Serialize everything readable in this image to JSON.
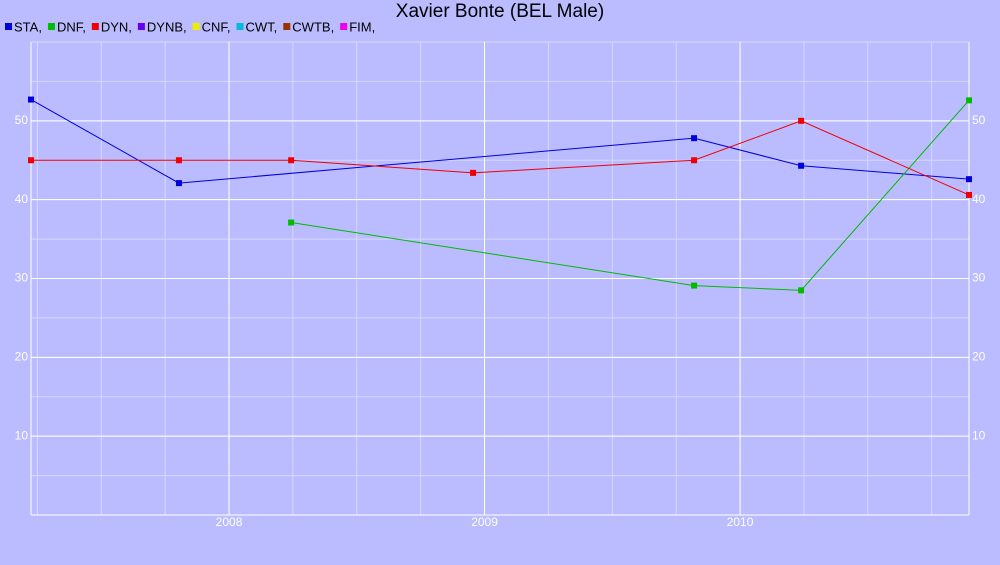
{
  "chart_data": {
    "type": "line",
    "title": "Xavier Bonte (BEL Male)",
    "xlim": [
      2007.225,
      2010.896
    ],
    "xticks": [
      2008,
      2009,
      2010
    ],
    "ylim": [
      0,
      60
    ],
    "yticks": [
      10,
      20,
      30,
      40,
      50
    ],
    "grid": true,
    "series": [
      {
        "name": "STA,",
        "color": "#0000dd",
        "x": [
          2007.225,
          2007.804,
          2009.82,
          2010.239,
          2010.896
        ],
        "values": [
          52.7,
          42.1,
          47.8,
          44.3,
          42.6
        ]
      },
      {
        "name": "DNF,",
        "color": "#00bb00",
        "x": [
          2008.243,
          2009.82,
          2010.239,
          2010.896
        ],
        "values": [
          37.1,
          29.1,
          28.5,
          52.6
        ]
      },
      {
        "name": "DYN,",
        "color": "#ee0000",
        "x": [
          2007.225,
          2007.804,
          2008.243,
          2008.955,
          2009.82,
          2010.239,
          2010.896
        ],
        "values": [
          45.0,
          45.0,
          45.0,
          43.4,
          45.0,
          50.0,
          40.6
        ]
      },
      {
        "name": "DYNB,",
        "color": "#6600ee",
        "x": [],
        "values": []
      },
      {
        "name": "CNF,",
        "color": "#eeee00",
        "x": [],
        "values": []
      },
      {
        "name": "CWT,",
        "color": "#00bbdd",
        "x": [],
        "values": []
      },
      {
        "name": "CWTB,",
        "color": "#993300",
        "x": [],
        "values": []
      },
      {
        "name": "FIM,",
        "color": "#ee00ee",
        "x": [],
        "values": []
      }
    ]
  }
}
